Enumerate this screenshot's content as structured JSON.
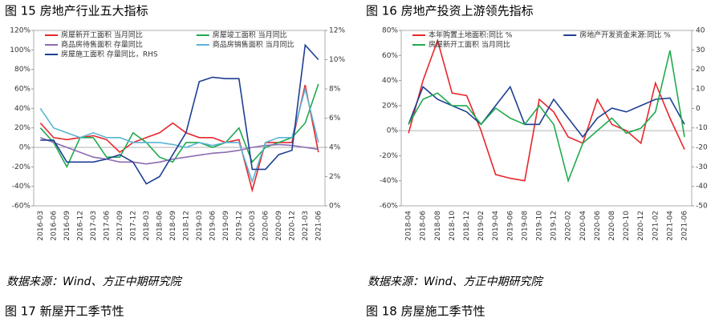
{
  "chart_data": [
    {
      "type": "line",
      "title": "图 15  房地产行业五大指标",
      "categories": [
        "2016-03",
        "2016-06",
        "2016-09",
        "2016-12",
        "2017-03",
        "2017-06",
        "2017-09",
        "2017-12",
        "2018-03",
        "2018-06",
        "2018-09",
        "2018-12",
        "2019-03",
        "2019-06",
        "2019-09",
        "2019-12",
        "2020-03",
        "2020-06",
        "2020-09",
        "2020-12",
        "2021-03",
        "2021-06"
      ],
      "ylim": [
        -60,
        120
      ],
      "yticks": [
        {
          "value": -60,
          "label": "-60%"
        },
        {
          "value": -40,
          "label": "-40%"
        },
        {
          "value": -20,
          "label": "-20%"
        },
        {
          "value": 0,
          "label": "0%"
        },
        {
          "value": 20,
          "label": "20%"
        },
        {
          "value": 40,
          "label": "40%"
        },
        {
          "value": 60,
          "label": "60%"
        },
        {
          "value": 80,
          "label": "80%"
        },
        {
          "value": 100,
          "label": "100%"
        },
        {
          "value": 120,
          "label": "120%"
        }
      ],
      "y2lim": [
        0,
        12
      ],
      "y2ticks": [
        {
          "value": 0,
          "label": "0%"
        },
        {
          "value": 2,
          "label": "2%"
        },
        {
          "value": 4,
          "label": "4%"
        },
        {
          "value": 6,
          "label": "6%"
        },
        {
          "value": 8,
          "label": "8%"
        },
        {
          "value": 10,
          "label": "10%"
        },
        {
          "value": 12,
          "label": "12%"
        }
      ],
      "series": [
        {
          "name": "房屋新开工面积 当月同比",
          "color": "#e8262b",
          "values": [
            25,
            10,
            8,
            10,
            12,
            8,
            -5,
            5,
            10,
            15,
            25,
            15,
            10,
            10,
            5,
            8,
            -44,
            5,
            5,
            5,
            64,
            -5
          ]
        },
        {
          "name": "房屋竣工面积 当月同比",
          "color": "#1faa4f",
          "values": [
            20,
            5,
            -20,
            10,
            10,
            -10,
            -10,
            15,
            5,
            -10,
            -15,
            5,
            5,
            0,
            5,
            20,
            -15,
            0,
            5,
            10,
            25,
            65
          ]
        },
        {
          "name": "商品房待售面积 存量同比",
          "color": "#8c6bb1",
          "values": [
            10,
            5,
            0,
            -5,
            -10,
            -12,
            -15,
            -15,
            -17,
            -15,
            -12,
            -10,
            -8,
            -6,
            -5,
            -3,
            0,
            2,
            3,
            2,
            0,
            -2
          ]
        },
        {
          "name": "商品房销售面积 当月同比",
          "color": "#5ab4d6",
          "values": [
            40,
            20,
            15,
            10,
            15,
            10,
            10,
            5,
            5,
            5,
            3,
            0,
            5,
            2,
            5,
            5,
            -35,
            5,
            10,
            10,
            60,
            5
          ]
        },
        {
          "name": "房屋施工面积 存量同比，RHS",
          "color": "#1f3f93",
          "axis": "y2",
          "values": [
            4.5,
            4.5,
            3.0,
            3.0,
            3.0,
            3.2,
            3.5,
            3.0,
            1.5,
            2.0,
            3.5,
            5.0,
            8.5,
            8.8,
            8.7,
            8.7,
            2.5,
            2.5,
            3.5,
            3.8,
            11.0,
            10.0
          ]
        }
      ]
    },
    {
      "type": "line",
      "title": "图 16  房地产投资上游领先指标",
      "categories": [
        "2018-04",
        "2018-06",
        "2018-08",
        "2018-10",
        "2018-12",
        "2019-02",
        "2019-04",
        "2019-06",
        "2019-08",
        "2019-10",
        "2019-12",
        "2020-02",
        "2020-04",
        "2020-06",
        "2020-08",
        "2020-10",
        "2020-12",
        "2021-02",
        "2021-04",
        "2021-06"
      ],
      "ylim": [
        -60,
        80
      ],
      "yticks": [
        {
          "value": -60,
          "label": "-60%"
        },
        {
          "value": -40,
          "label": "-40%"
        },
        {
          "value": -20,
          "label": "-20%"
        },
        {
          "value": 0,
          "label": "0%"
        },
        {
          "value": 20,
          "label": "20%"
        },
        {
          "value": 40,
          "label": "40%"
        },
        {
          "value": 60,
          "label": "60%"
        },
        {
          "value": 80,
          "label": "80%"
        }
      ],
      "y2lim": [
        -50,
        40
      ],
      "y2ticks": [
        -50,
        -40,
        -30,
        -20,
        -10,
        0,
        10,
        20,
        30,
        40
      ],
      "series": [
        {
          "name": "本年购置土地面积:同比 %",
          "color": "#e8262b",
          "values": [
            -2,
            40,
            72,
            30,
            28,
            0,
            -35,
            -38,
            -40,
            25,
            15,
            -5,
            -10,
            25,
            5,
            0,
            -10,
            38,
            10,
            -15
          ]
        },
        {
          "name": "房地产开发资金来源:同比 %",
          "color": "#1f3f93",
          "values": [
            5,
            35,
            25,
            20,
            15,
            5,
            20,
            35,
            5,
            5,
            25,
            10,
            -5,
            10,
            18,
            15,
            20,
            25,
            26,
            5
          ]
        },
        {
          "name": "房屋新开工面积 当月同比",
          "color": "#1faa4f",
          "values": [
            5,
            25,
            30,
            20,
            20,
            5,
            18,
            10,
            5,
            20,
            5,
            -40,
            -10,
            0,
            10,
            -2,
            2,
            15,
            64,
            -5
          ]
        }
      ]
    }
  ],
  "sources": [
    "数据来源：Wind、方正中期研究院",
    "数据来源：Wind、方正中期研究院"
  ],
  "captions": [
    "图 17  新屋开工季节性",
    "图 18  房屋施工季节性"
  ]
}
